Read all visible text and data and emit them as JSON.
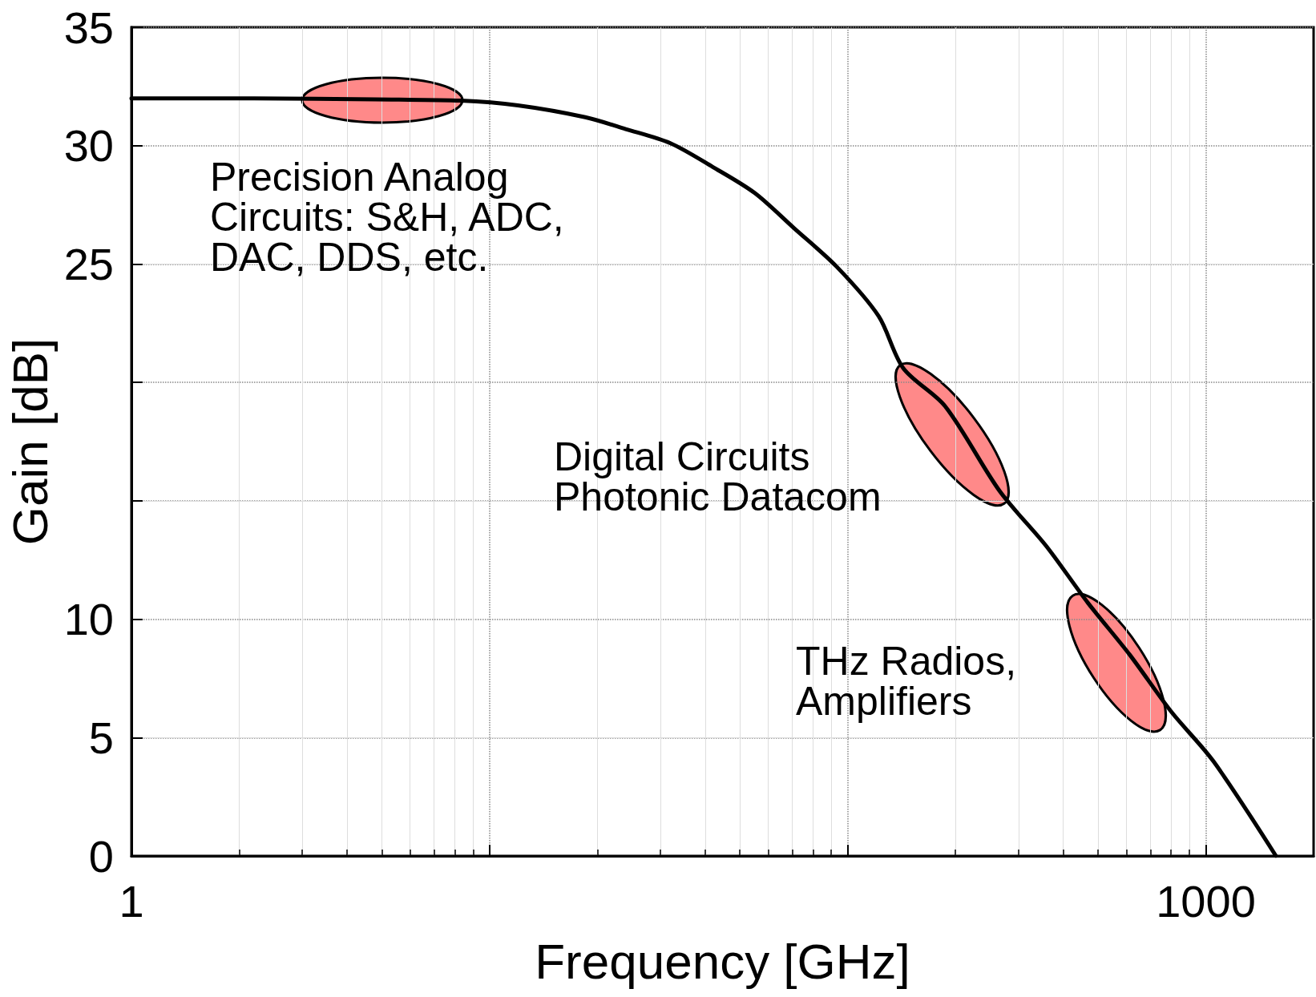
{
  "chart_data": {
    "type": "line",
    "xlabel": "Frequency [GHz]",
    "ylabel": "Gain [dB]",
    "log": "x",
    "xlim": [
      1,
      2000
    ],
    "xticks": [
      1,
      {
        "value": 10,
        "label": null
      },
      {
        "value": 100,
        "label": null
      },
      1000
    ],
    "ylim": [
      0,
      35
    ],
    "yticks": [
      0,
      5,
      10,
      {
        "value": 15,
        "label": null
      },
      {
        "value": 20,
        "label": null
      },
      25,
      30,
      35
    ],
    "grid": true,
    "marker": "none",
    "line_style": "solid",
    "series": [
      {
        "color": "#000000",
        "x": [
          1,
          2.2,
          4.8,
          8.3,
          12,
          18.5,
          24,
          32,
          42,
          55,
          71,
          93,
          122,
          143,
          187,
          266,
          358,
          468,
          613,
          800,
          1050,
          1570
        ],
        "values": [
          32.0,
          32.0,
          31.95,
          31.9,
          31.7,
          31.2,
          30.7,
          30.1,
          29.1,
          28.0,
          26.5,
          24.9,
          22.8,
          20.6,
          19.0,
          15.4,
          13.1,
          10.7,
          8.5,
          6.1,
          4.0,
          0
        ]
      }
    ],
    "annotations": [
      "Precision Analog\nCircuits: S&H, ADC,\nDAC, DDS, etc.",
      "Digital Circuits\nPhotonic Datacom",
      "THz Radios,\nAmplifiers"
    ]
  }
}
